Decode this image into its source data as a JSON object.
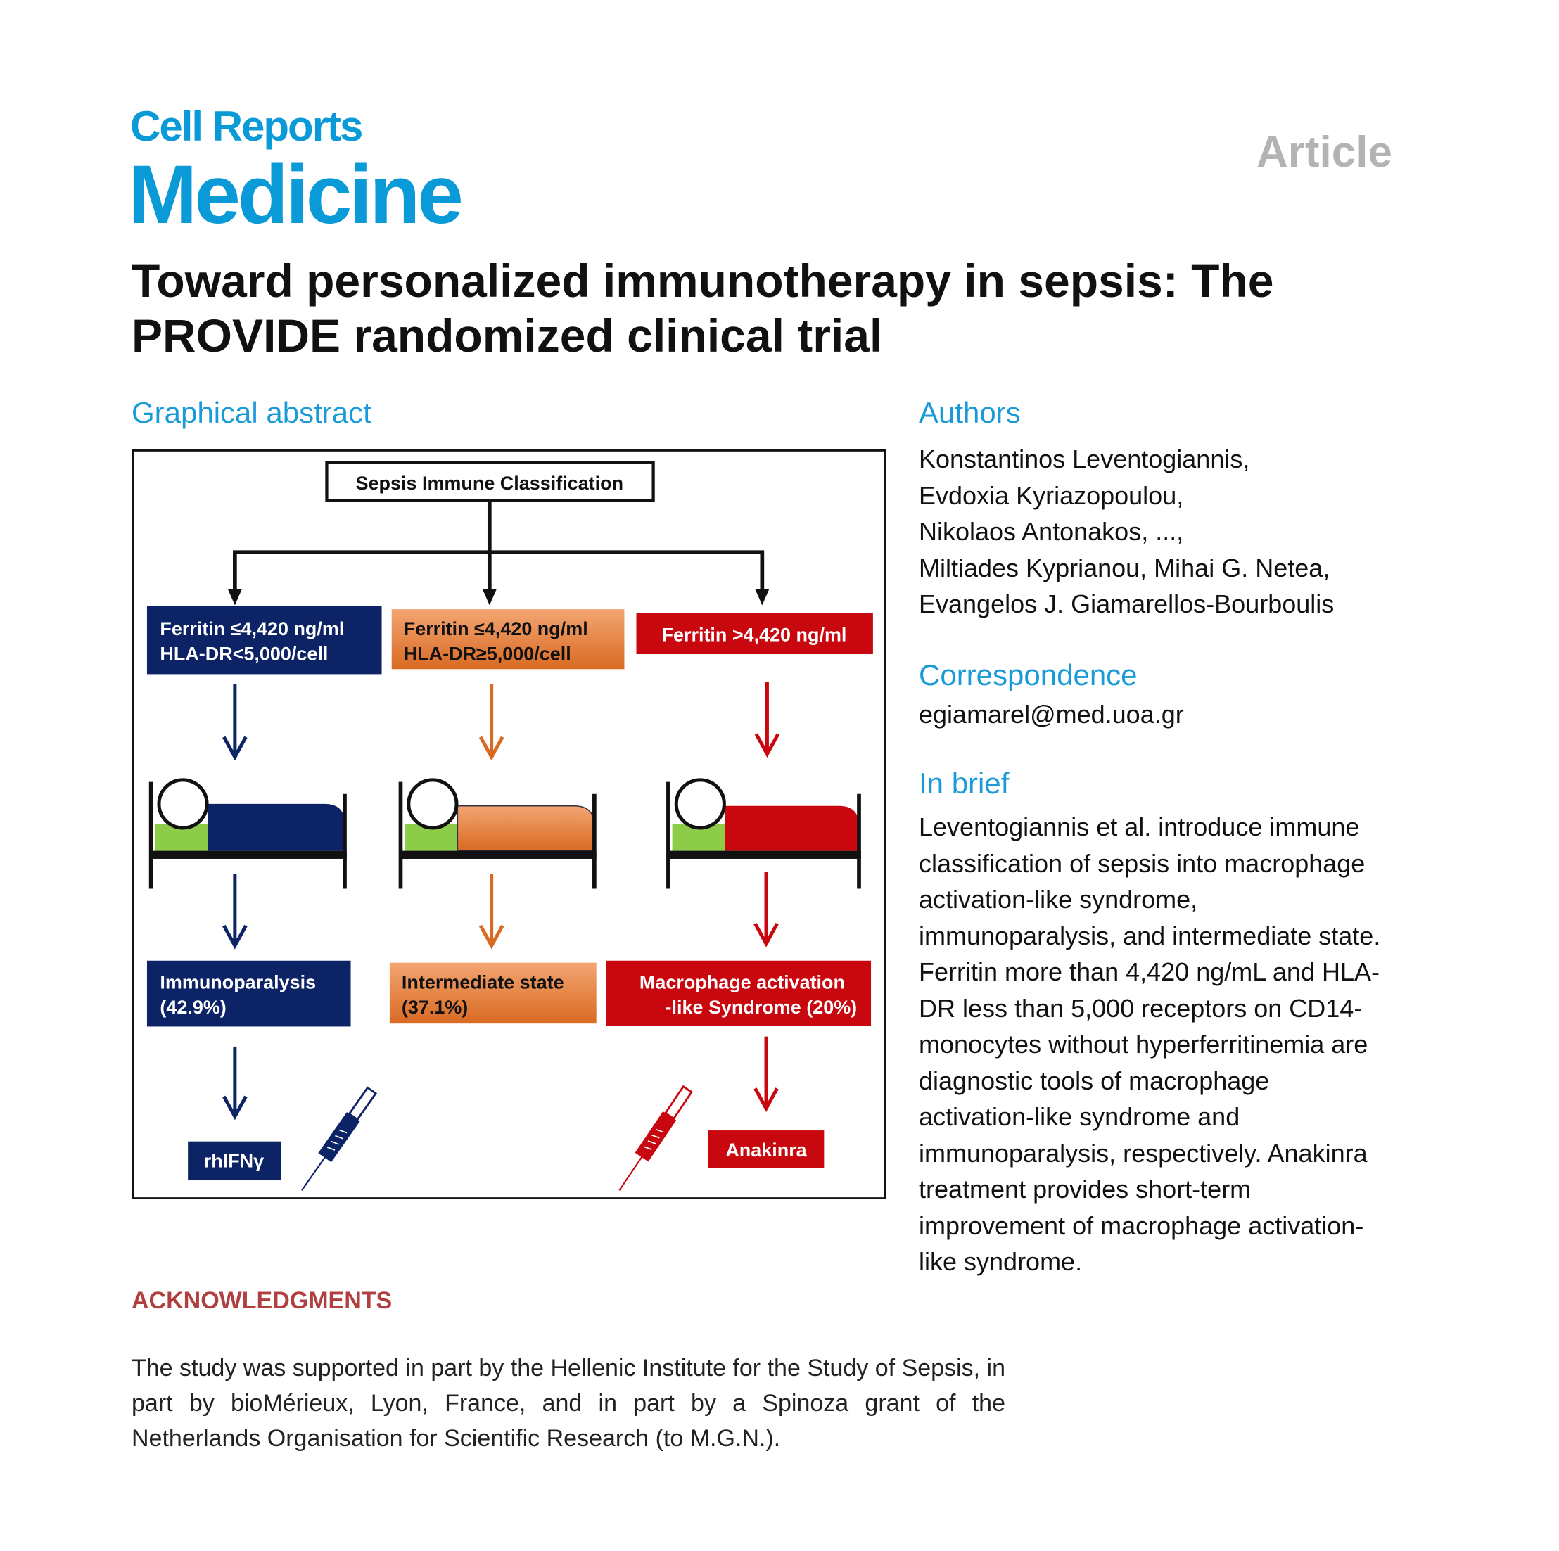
{
  "journal": {
    "line1": "Cell Reports",
    "line2": "Medicine",
    "brand_color": "#0a9ad7"
  },
  "article_type": "Article",
  "title": {
    "line1": "Toward personalized immunotherapy in sepsis: The",
    "line2": "PROVIDE randomized clinical trial"
  },
  "graphical_abstract": {
    "heading": "Graphical abstract",
    "root": "Sepsis Immune Classification",
    "criteria": [
      {
        "line1": "Ferritin ≤4,420 ng/ml",
        "line2": "HLA-DR<5,000/cell",
        "color": "#0c2366"
      },
      {
        "line1": "Ferritin ≤4,420 ng/ml",
        "line2": "HLA-DR≥5,000/cell",
        "color": "#e07a3a"
      },
      {
        "line1": "Ferritin >4,420 ng/ml",
        "color": "#c8070f"
      }
    ],
    "outcomes": [
      {
        "line1": "Immunoparalysis",
        "line2": "(42.9%)"
      },
      {
        "line1": "Intermediate state",
        "line2": "(37.1%)"
      },
      {
        "line1": "Macrophage activation",
        "line2": "-like Syndrome (20%)"
      }
    ],
    "treatments": {
      "blue": "rhIFNγ",
      "red": "Anakinra"
    },
    "icons": [
      "bed-icon",
      "syringe-icon"
    ]
  },
  "authors": {
    "heading": "Authors",
    "lines": [
      "Konstantinos Leventogiannis,",
      "Evdoxia Kyriazopoulou,",
      "Nikolaos Antonakos, ...,",
      "Miltiades Kyprianou, Mihai G. Netea,",
      "Evangelos J. Giamarellos-Bourboulis"
    ]
  },
  "correspondence": {
    "heading": "Correspondence",
    "email": "egiamarel@med.uoa.gr"
  },
  "in_brief": {
    "heading": "In brief",
    "lines": [
      "Leventogiannis et al. introduce immune",
      "classification of sepsis into macrophage",
      "activation-like syndrome,",
      "immunoparalysis, and intermediate state.",
      "Ferritin more than 4,420 ng/mL and HLA-",
      "DR less than 5,000 receptors on CD14-",
      "monocytes without hyperferritinemia are",
      "diagnostic tools of macrophage",
      "activation-like syndrome and",
      "immunoparalysis, respectively. Anakinra",
      "treatment provides short-term",
      "improvement of macrophage activation-",
      "like syndrome."
    ]
  },
  "acknowledgments": {
    "heading": "ACKNOWLEDGMENTS",
    "text": "The study was supported in part by the Hellenic Institute for the Study of Sepsis, in part by bioMérieux, Lyon, France, and in part by a Spinoza grant of the Netherlands Organisation for Scientific Research (to M.G.N.)."
  }
}
